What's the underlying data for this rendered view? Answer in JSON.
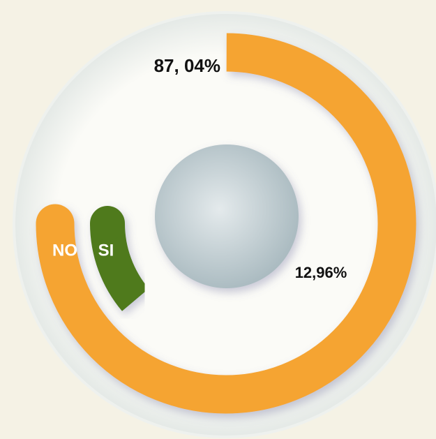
{
  "chart_data": {
    "type": "radial_bar",
    "categories": [
      "NO",
      "SI"
    ],
    "values": [
      87.04,
      12.96
    ],
    "value_labels": [
      "87, 04%",
      "12,96%"
    ],
    "colors": [
      "#f5a431",
      "#4f7a1d"
    ]
  }
}
